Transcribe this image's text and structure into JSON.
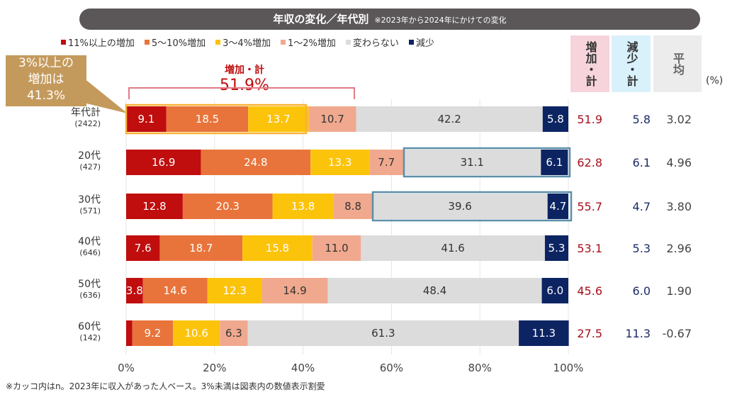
{
  "title": "年収の変化／年代別",
  "subtitle": "※2023年から2024年にかけての変化",
  "footnote": "※カッコ内はn。2023年に収入があった人ベース。3%未満は図表内の数値表示割愛",
  "callout": {
    "line1": "3%以上の",
    "line2": "増加は",
    "line3": "41.3%"
  },
  "bracket": {
    "label": "増加・計",
    "value": "51.9%"
  },
  "headers": {
    "increase": "増加・計",
    "decrease": "減少・計",
    "average": "平均",
    "unit": "(%)"
  },
  "colors": {
    "red": "#c00d0d",
    "orange": "#e8743b",
    "yellow": "#fcc30b",
    "pink": "#f0a98e",
    "grey": "#dcdcdc",
    "navy": "#0d2463",
    "highlight_box": "#f9b233",
    "blue_box": "#5b8fa8"
  },
  "chart_data": {
    "type": "bar",
    "orientation": "horizontal",
    "stacked": true,
    "xlim": [
      0,
      100
    ],
    "xticks": [
      "0%",
      "20%",
      "40%",
      "60%",
      "80%",
      "100%"
    ],
    "legend_position": "top",
    "series": [
      {
        "name": "11%以上の増加",
        "color": "#c00d0d"
      },
      {
        "name": "5～10%増加",
        "color": "#e8743b"
      },
      {
        "name": "3～4%増加",
        "color": "#fcc30b"
      },
      {
        "name": "1～2%増加",
        "color": "#f0a98e"
      },
      {
        "name": "変わらない",
        "color": "#dcdcdc"
      },
      {
        "name": "減少",
        "color": "#0d2463"
      }
    ],
    "rows": [
      {
        "label": "年代計",
        "n": "(2422)",
        "values": [
          9.1,
          18.5,
          13.7,
          10.7,
          42.2,
          5.8
        ],
        "increase": "51.9",
        "decrease": "5.8",
        "average": "3.02"
      },
      {
        "label": "20代",
        "n": "(427)",
        "values": [
          16.9,
          24.8,
          13.3,
          7.7,
          31.1,
          6.1
        ],
        "increase": "62.8",
        "decrease": "6.1",
        "average": "4.96"
      },
      {
        "label": "30代",
        "n": "(571)",
        "values": [
          12.8,
          20.3,
          13.8,
          8.8,
          39.6,
          4.7
        ],
        "increase": "55.7",
        "decrease": "4.7",
        "average": "3.80"
      },
      {
        "label": "40代",
        "n": "(646)",
        "values": [
          7.6,
          18.7,
          15.8,
          11.0,
          41.6,
          5.3
        ],
        "increase": "53.1",
        "decrease": "5.3",
        "average": "2.96"
      },
      {
        "label": "50代",
        "n": "(636)",
        "values": [
          3.8,
          14.6,
          12.3,
          14.9,
          48.4,
          6.0
        ],
        "increase": "45.6",
        "decrease": "6.0",
        "average": "1.90"
      },
      {
        "label": "60代",
        "n": "(142)",
        "values": [
          1.4,
          9.2,
          10.6,
          6.3,
          61.3,
          11.3
        ],
        "increase": "27.5",
        "decrease": "11.3",
        "average": "-0.67"
      }
    ]
  }
}
